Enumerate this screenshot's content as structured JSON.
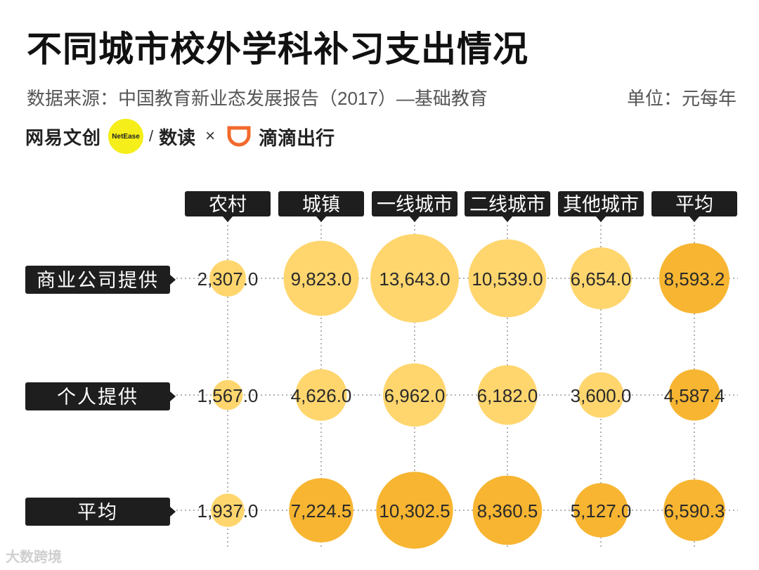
{
  "header": {
    "title": "不同城市校外学科补习支出情况",
    "source": "数据来源：中国教育新业态发展报告（2017）—基础教育",
    "unit": "单位：元每年"
  },
  "brands": {
    "netease": "网易文创",
    "netease_mark": "NetEase",
    "slash": "/",
    "shudu": "数读",
    "times": "×",
    "didi": "滴滴出行"
  },
  "watermark": "大数跨境",
  "colors": {
    "light_bubble": "#ffd66e",
    "dark_bubble": "#f7b531",
    "label_bg": "#1e1e1e",
    "label_text": "#ffffff",
    "grid": "#9a9a9a"
  },
  "chart_data": {
    "type": "bubble-matrix",
    "columns": [
      "农村",
      "城镇",
      "一线城市",
      "二线城市",
      "其他城市",
      "平均"
    ],
    "rows": [
      "商业公司提供",
      "个人提供",
      "平均"
    ],
    "values": [
      [
        2307.0,
        9823.0,
        13643.0,
        10539.0,
        6654.0,
        8593.2
      ],
      [
        1567.0,
        4626.0,
        6962.0,
        6182.0,
        3600.0,
        4587.4
      ],
      [
        1937.0,
        7224.5,
        10302.5,
        8360.5,
        5127.0,
        6590.3
      ]
    ],
    "labels": [
      [
        "2,307.0",
        "9,823.0",
        "13,643.0",
        "10,539.0",
        "6,654.0",
        "8,593.2"
      ],
      [
        "1,567.0",
        "4,626.0",
        "6,962.0",
        "6,182.0",
        "3,600.0",
        "4,587.4"
      ],
      [
        "1,937.0",
        "7,224.5",
        "10,302.5",
        "8,360.5",
        "5,127.0",
        "6,590.3"
      ]
    ],
    "highlight_rule": "average row and average column use darker orange"
  }
}
